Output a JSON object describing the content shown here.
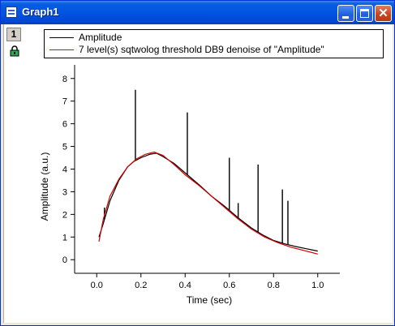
{
  "window": {
    "title": "Graph1",
    "icon": "graph-window-icon",
    "controls": {
      "minimize": "minimize-icon",
      "maximize": "maximize-icon",
      "close": "close-icon"
    }
  },
  "layer": {
    "number": "1",
    "lock_icon": "lock-icon"
  },
  "legend": {
    "entries": [
      {
        "label": "Amplitude",
        "color": "#000000"
      },
      {
        "label": "7 level(s) sqtwolog threshold DB9 denoise of \"Amplitude\"",
        "color": "#ff0000"
      }
    ]
  },
  "chart_data": {
    "type": "line",
    "xlabel": "Time (sec)",
    "ylabel": "Amplitude (a.u.)",
    "xlim": [
      -0.1,
      1.1
    ],
    "ylim": [
      -0.6,
      8.6
    ],
    "xticks": [
      "0.0",
      "0.2",
      "0.4",
      "0.6",
      "0.8",
      "1.0"
    ],
    "yticks": [
      "0",
      "1",
      "2",
      "3",
      "4",
      "5",
      "6",
      "7",
      "8"
    ],
    "grid": false,
    "legend_position": "top",
    "series": [
      {
        "name": "Amplitude",
        "color": "#000000",
        "x": [
          0.01,
          0.03,
          0.06,
          0.1,
          0.14,
          0.17,
          0.2,
          0.24,
          0.27,
          0.3,
          0.35,
          0.41,
          0.47,
          0.52,
          0.58,
          0.64,
          0.7,
          0.75,
          0.8,
          0.85,
          0.9,
          0.95,
          1.0
        ],
        "y": [
          1.0,
          1.6,
          2.6,
          3.5,
          4.1,
          4.35,
          4.5,
          4.65,
          4.7,
          4.55,
          4.25,
          3.75,
          3.25,
          2.8,
          2.35,
          1.85,
          1.4,
          1.1,
          0.85,
          0.7,
          0.58,
          0.48,
          0.38
        ],
        "spikes": [
          {
            "x": 0.035,
            "y": 2.3
          },
          {
            "x": 0.175,
            "y": 7.5
          },
          {
            "x": 0.41,
            "y": 6.5
          },
          {
            "x": 0.6,
            "y": 4.5
          },
          {
            "x": 0.64,
            "y": 2.5
          },
          {
            "x": 0.73,
            "y": 4.2
          },
          {
            "x": 0.84,
            "y": 3.1
          },
          {
            "x": 0.865,
            "y": 2.6
          }
        ]
      },
      {
        "name": "7 level(s) sqtwolog threshold DB9 denoise of \"Amplitude\"",
        "color": "#d40000",
        "x": [
          0.01,
          0.03,
          0.06,
          0.1,
          0.14,
          0.18,
          0.22,
          0.26,
          0.3,
          0.35,
          0.4,
          0.46,
          0.52,
          0.58,
          0.64,
          0.7,
          0.76,
          0.82,
          0.88,
          0.94,
          1.0
        ],
        "y": [
          0.8,
          1.8,
          2.8,
          3.55,
          4.1,
          4.45,
          4.65,
          4.75,
          4.6,
          4.2,
          3.75,
          3.3,
          2.8,
          2.3,
          1.8,
          1.35,
          1.0,
          0.75,
          0.55,
          0.4,
          0.25
        ]
      }
    ]
  }
}
